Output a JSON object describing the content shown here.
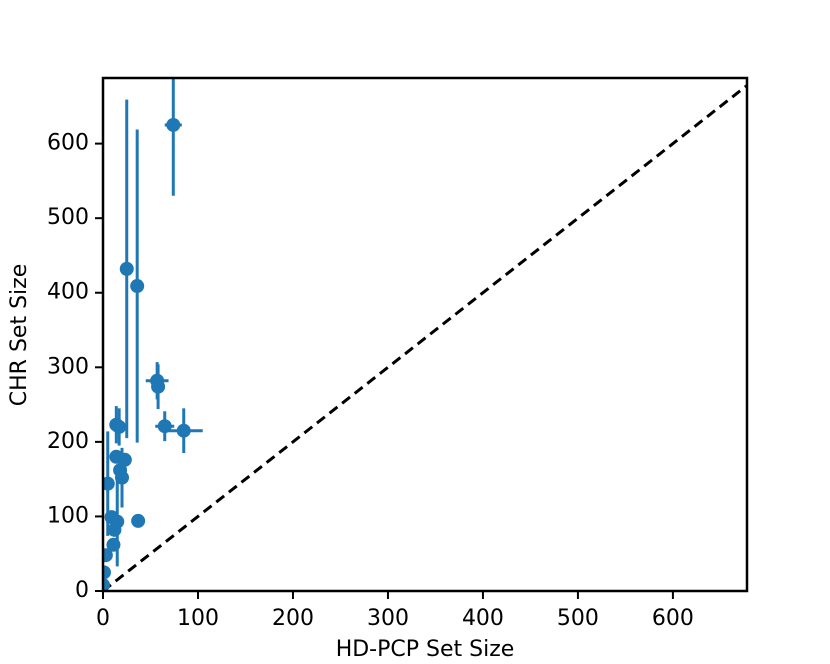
{
  "chart_data": {
    "type": "scatter",
    "xlabel": "HD-PCP Set Size",
    "ylabel": "CHR Set Size",
    "xlim": [
      0,
      678
    ],
    "ylim": [
      0,
      688
    ],
    "xticks": [
      0,
      100,
      200,
      300,
      400,
      500,
      600
    ],
    "yticks": [
      0,
      100,
      200,
      300,
      400,
      500,
      600
    ],
    "identity_line": true,
    "series": [
      {
        "color": "#1f77b4",
        "x": [
          74,
          25,
          36,
          57,
          58,
          65,
          85,
          14,
          17,
          23,
          14,
          18,
          20,
          37,
          5,
          9,
          12,
          15,
          11,
          3,
          1,
          0
        ],
        "values": [
          625,
          432,
          409,
          282,
          274,
          221,
          215,
          223,
          220,
          176,
          180,
          162,
          152,
          94,
          144,
          99,
          82,
          93,
          62,
          48,
          25,
          8
        ],
        "xerr": [
          9,
          0,
          0,
          12,
          4,
          10,
          20,
          0,
          0,
          0,
          0,
          0,
          2,
          0,
          0,
          0,
          0,
          0,
          0,
          0,
          0,
          0
        ],
        "yerr": [
          95,
          227,
          210,
          25,
          30,
          20,
          30,
          25,
          25,
          0,
          0,
          0,
          40,
          0,
          70,
          0,
          0,
          60,
          0,
          0,
          0,
          0
        ]
      }
    ]
  }
}
